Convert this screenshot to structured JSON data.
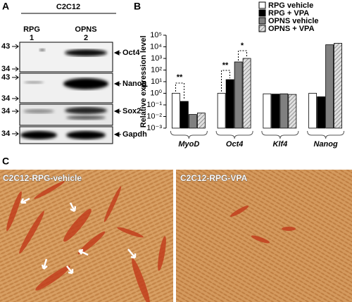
{
  "panels": {
    "a": {
      "label": "A",
      "cell_line": "C2C12",
      "lanes": [
        {
          "name": "RPG",
          "number": 1
        },
        {
          "name": "OPNS",
          "number": 2
        }
      ],
      "markers": [
        43,
        34,
        43,
        34,
        34,
        34
      ],
      "bands": [
        "Oct4",
        "Nanog",
        "Sox2",
        "Gapdh"
      ]
    },
    "b": {
      "label": "B"
    },
    "c": {
      "label": "C",
      "images": [
        "C2C12-RPG-vehicle",
        "C2C12-RPG-VPA"
      ]
    }
  },
  "chart_data": {
    "type": "bar",
    "ylabel": "Relative expression level",
    "log_scale": true,
    "categories": [
      "MyoD",
      "Oct4",
      "Klf4",
      "Nanog"
    ],
    "series": [
      {
        "name": "RPG vehicle",
        "color": "#ffffff",
        "values": [
          1.0,
          1.0,
          0.9,
          1.0
        ]
      },
      {
        "name": "RPG + VPA",
        "color": "#000000",
        "values": [
          0.2,
          15,
          0.85,
          0.5
        ]
      },
      {
        "name": "OPNS vehicle",
        "color": "#808080",
        "values": [
          0.015,
          500,
          0.9,
          15000
        ]
      },
      {
        "name": "OPNS + VPA",
        "color": "#bdbdbd",
        "hatch": true,
        "values": [
          0.02,
          1000,
          0.8,
          20000
        ]
      }
    ],
    "ylim": [
      0.001,
      100000
    ],
    "yticks": [
      {
        "value": 0.001,
        "label": "10⁻³"
      },
      {
        "value": 0.01,
        "label": "10⁻²"
      },
      {
        "value": 0.1,
        "label": "10⁻¹"
      },
      {
        "value": 1,
        "label": "10⁰"
      },
      {
        "value": 10,
        "label": "10¹"
      },
      {
        "value": 100,
        "label": "10²"
      },
      {
        "value": 1000,
        "label": "10³"
      },
      {
        "value": 10000,
        "label": "10⁴"
      },
      {
        "value": 100000,
        "label": "10⁵"
      }
    ],
    "annotations": [
      "**",
      "**",
      "*"
    ],
    "legend": "upper right"
  }
}
